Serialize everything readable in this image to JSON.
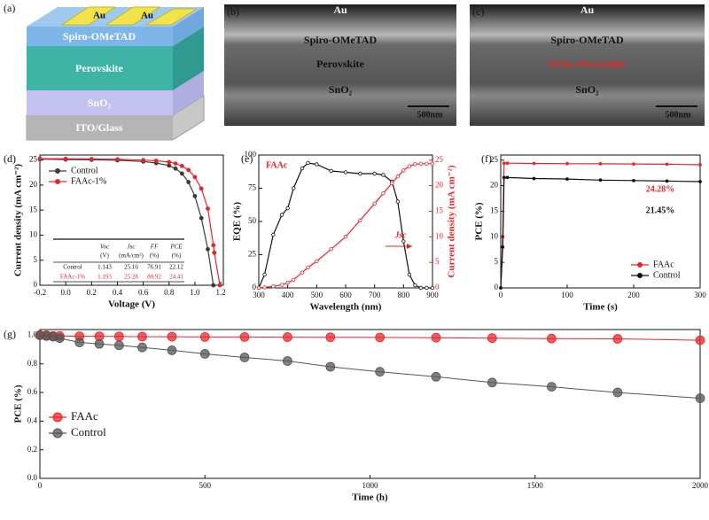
{
  "panel_labels": [
    "(a)",
    "(b)",
    "(c)",
    "(d)",
    "(e)",
    "(f)",
    "(g)"
  ],
  "schematic": {
    "electrode_labels": [
      "Au",
      "Au"
    ],
    "layers": [
      "Spiro-OMeTAD",
      "Perovskite",
      "SnO₂",
      "ITO/Glass"
    ]
  },
  "sem": [
    {
      "labels": [
        "Au",
        "Spiro-OMeTAD",
        "Perovskite",
        "SnO₂"
      ],
      "scale_bar": "500nm"
    },
    {
      "labels": [
        "Au",
        "Spiro-OMeTAD",
        "FAAc-Perovskite",
        "SnO₂"
      ],
      "scale_bar": "500nm"
    }
  ],
  "chart_data": [
    {
      "type": "line",
      "xlabel": "Voltage (V)",
      "ylabel": "Current density (mA cm⁻²)",
      "x": [
        -0.2,
        0,
        0.2,
        0.4,
        0.6,
        0.7,
        0.8,
        0.85,
        0.9,
        0.95,
        1.0,
        1.05,
        1.1,
        1.143,
        1.15,
        1.193
      ],
      "series": [
        {
          "name": "Control",
          "color": "#3a3a3a",
          "values": [
            25.16,
            25.1,
            25.05,
            24.95,
            24.7,
            24.4,
            23.9,
            23.3,
            22.3,
            20.6,
            17.8,
            13.4,
            7.2,
            0,
            null,
            null
          ]
        },
        {
          "name": "FAAc-1%",
          "color": "#e8262a",
          "values": [
            25.28,
            25.25,
            25.2,
            25.15,
            25.0,
            24.85,
            24.6,
            24.3,
            23.8,
            23.0,
            21.6,
            19.3,
            15.3,
            8.0,
            6.5,
            0
          ]
        }
      ],
      "xlim": [
        -0.2,
        1.22
      ],
      "ylim": [
        0,
        26
      ],
      "xticks": [
        -0.2,
        {
          "value": 0,
          "label": "0.0"
        },
        0.2,
        0.4,
        0.6,
        0.8,
        {
          "value": 1,
          "label": "1.0"
        },
        1.2
      ],
      "yticks": [
        0,
        5,
        10,
        15,
        20,
        25
      ],
      "legend": "upper left",
      "table": {
        "columns": [
          [
            "",
            ""
          ],
          [
            "Voc",
            "(V)"
          ],
          [
            "Jsc",
            "(mA/cm²)"
          ],
          [
            "FF",
            "(%)"
          ],
          [
            "PCE",
            "(%)"
          ]
        ],
        "rows": [
          [
            "Control",
            "1.143",
            "25.16",
            "76.91",
            "22.12"
          ],
          [
            "FAAc-1%",
            "1.193",
            "25.28",
            "80.92",
            "24.41"
          ]
        ]
      }
    },
    {
      "type": "line",
      "xlabel": "Wavelength (nm)",
      "ylabel": "EQE (%)",
      "y2label": "Current density (mA cm⁻²)",
      "x": [
        300,
        320,
        350,
        380,
        400,
        420,
        450,
        470,
        500,
        550,
        600,
        650,
        700,
        730,
        760,
        780,
        800,
        820,
        840,
        860,
        880,
        900
      ],
      "series": [
        {
          "name": "EQE",
          "color": "#111111",
          "values": [
            0,
            10,
            40,
            55,
            60,
            75,
            90,
            94,
            93,
            88,
            87,
            86,
            86,
            85,
            80,
            65,
            35,
            10,
            2,
            0,
            0,
            0
          ]
        },
        {
          "name": "Jsc",
          "color": "#e8262a",
          "axis": "y2",
          "values": [
            0,
            0.1,
            0.3,
            0.6,
            1,
            1.6,
            3,
            4,
            5.2,
            7.6,
            10,
            13.2,
            16.5,
            18.5,
            20.5,
            21.8,
            23,
            23.8,
            24.2,
            24.3,
            24.3,
            24.3
          ]
        }
      ],
      "xlim": [
        300,
        900
      ],
      "ylim": [
        0,
        100
      ],
      "y2lim": [
        0,
        26
      ],
      "xticks": [
        300,
        400,
        500,
        600,
        700,
        800,
        900
      ],
      "yticks": [
        0,
        25,
        50,
        75,
        100
      ],
      "y2ticks": [
        0,
        5,
        10,
        15,
        20,
        25
      ],
      "annotations": [
        {
          "text": "FAAc",
          "color": "#e8262a"
        },
        {
          "text": "Jsc",
          "color": "#e8262a"
        }
      ]
    },
    {
      "type": "line",
      "xlabel": "Time (s)",
      "ylabel": "PCE (%)",
      "x": [
        0,
        3,
        5,
        10,
        50,
        100,
        150,
        200,
        250,
        300
      ],
      "series": [
        {
          "name": "FAAc",
          "color": "#e8262a",
          "values": [
            0,
            10,
            24.4,
            24.4,
            24.35,
            24.3,
            24.28,
            24.25,
            24.2,
            24.1
          ]
        },
        {
          "name": "Control",
          "color": "#111111",
          "values": [
            0,
            8,
            21.6,
            21.6,
            21.4,
            21.3,
            21.1,
            21.0,
            20.9,
            20.8
          ]
        }
      ],
      "xlim": [
        0,
        300
      ],
      "ylim": [
        0,
        26
      ],
      "xticks": [
        0,
        100,
        200,
        300
      ],
      "yticks": [
        0,
        5,
        10,
        15,
        20,
        25
      ],
      "legend": "lower right",
      "annotations": [
        {
          "text": "24.28%",
          "color": "#e8262a"
        },
        {
          "text": "21.45%",
          "color": "#111111"
        }
      ]
    },
    {
      "type": "line",
      "xlabel": "Time (h)",
      "ylabel": "PCE (%)",
      "x": [
        0,
        20,
        40,
        60,
        120,
        180,
        240,
        310,
        400,
        500,
        620,
        750,
        880,
        1030,
        1200,
        1370,
        1550,
        1750,
        2000
      ],
      "series": [
        {
          "name": "FAAc",
          "color": "#e8262a",
          "values": [
            1.0,
            1.0,
            0.995,
            0.995,
            0.993,
            0.993,
            0.992,
            0.99,
            0.99,
            0.988,
            0.988,
            0.987,
            0.986,
            0.985,
            0.983,
            0.98,
            0.977,
            0.975,
            0.965
          ]
        },
        {
          "name": "Control",
          "color": "#555555",
          "values": [
            1.0,
            0.995,
            0.99,
            0.98,
            0.95,
            0.94,
            0.93,
            0.915,
            0.895,
            0.87,
            0.845,
            0.82,
            0.78,
            0.745,
            0.71,
            0.67,
            0.64,
            0.6,
            0.56
          ]
        }
      ],
      "xlim": [
        0,
        2000
      ],
      "ylim": [
        0,
        1.04
      ],
      "xticks": [
        0,
        500,
        1000,
        1500,
        2000
      ],
      "yticks": [
        {
          "value": 0,
          "label": "0.0"
        },
        0.2,
        0.4,
        0.6,
        0.8,
        {
          "value": 1,
          "label": "1.0"
        }
      ],
      "legend": "center left"
    }
  ]
}
